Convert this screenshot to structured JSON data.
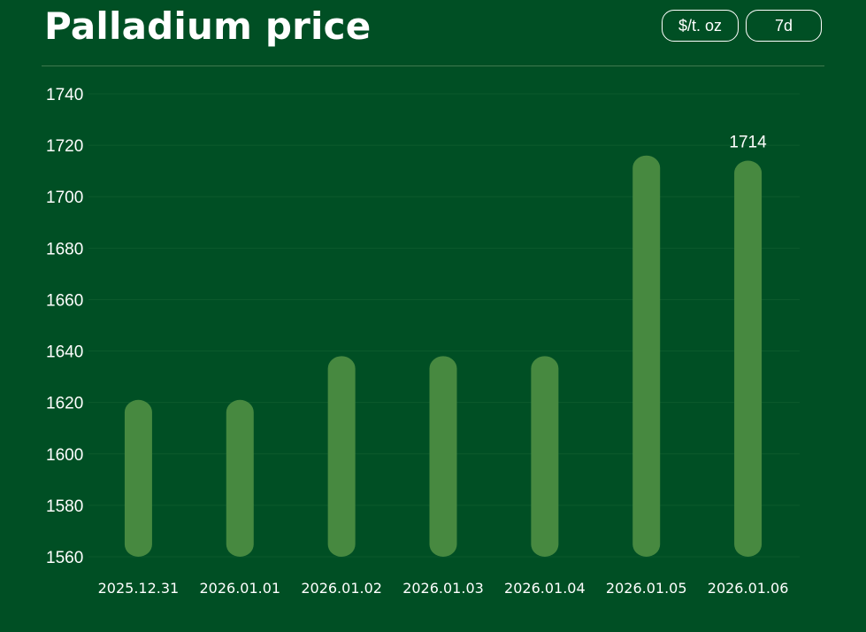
{
  "header": {
    "title": "Palladium price",
    "unit_button": "$/t. oz",
    "range_button": "7d"
  },
  "colors": {
    "background": "#004f24",
    "bar": "#478940",
    "grid": "#0c5a2c"
  },
  "chart_data": {
    "type": "bar",
    "title": "Palladium price",
    "categories": [
      "2025.12.31",
      "2026.01.01",
      "2026.01.02",
      "2026.01.03",
      "2026.01.04",
      "2026.01.05",
      "2026.01.06"
    ],
    "values": [
      1621,
      1621,
      1638,
      1638,
      1638,
      1716,
      1714
    ],
    "ylim": [
      1560,
      1740
    ],
    "yticks": [
      1560,
      1580,
      1600,
      1620,
      1640,
      1660,
      1680,
      1700,
      1720,
      1740
    ],
    "grid": true,
    "data_labels": [
      {
        "category": "2026.01.06",
        "text": "1714"
      }
    ]
  }
}
